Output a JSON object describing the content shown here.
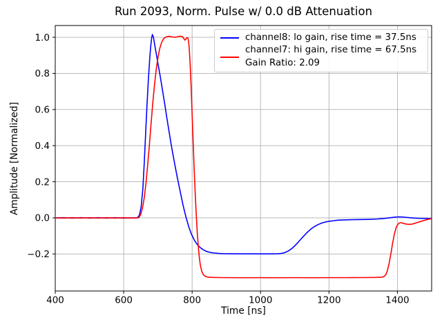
{
  "figure": {
    "background_color": "#ffffff",
    "text_color": "#000000"
  },
  "chart_data": {
    "type": "line",
    "title": "Run 2093, Norm. Pulse w/ 0.0 dB Attenuation",
    "xlabel": "Time [ns]",
    "ylabel": "Amplitude [Normalized]",
    "xlim": [
      400,
      1500
    ],
    "ylim": [
      -0.405,
      1.065
    ],
    "xticks": [
      400,
      600,
      800,
      1000,
      1200,
      1400
    ],
    "yticks": [
      -0.2,
      0.0,
      0.2,
      0.4,
      0.6,
      0.8,
      1.0
    ],
    "grid": true,
    "grid_color": "#b0b0b0",
    "axis_color": "#000000",
    "legend_position": "upper right",
    "series": [
      {
        "id": "channel8",
        "label": "channel8: lo gain, rise time = 37.5ns",
        "color": "#0000ff",
        "points": [
          [
            400,
            0.0
          ],
          [
            425,
            0.001
          ],
          [
            450,
            -0.001
          ],
          [
            475,
            0.001
          ],
          [
            500,
            -0.001
          ],
          [
            525,
            0.001
          ],
          [
            550,
            -0.001
          ],
          [
            575,
            0.001
          ],
          [
            600,
            -0.001
          ],
          [
            620,
            0.0
          ],
          [
            635,
            0.0
          ],
          [
            641,
            0.002
          ],
          [
            646,
            0.015
          ],
          [
            651,
            0.06
          ],
          [
            656,
            0.16
          ],
          [
            660,
            0.3
          ],
          [
            664,
            0.46
          ],
          [
            668,
            0.62
          ],
          [
            672,
            0.76
          ],
          [
            676,
            0.88
          ],
          [
            679,
            0.95
          ],
          [
            682,
            1.0
          ],
          [
            684,
            1.015
          ],
          [
            687,
            1.0
          ],
          [
            691,
            0.955
          ],
          [
            696,
            0.9
          ],
          [
            702,
            0.835
          ],
          [
            708,
            0.77
          ],
          [
            714,
            0.7
          ],
          [
            720,
            0.63
          ],
          [
            726,
            0.555
          ],
          [
            732,
            0.485
          ],
          [
            738,
            0.415
          ],
          [
            744,
            0.35
          ],
          [
            750,
            0.29
          ],
          [
            756,
            0.23
          ],
          [
            762,
            0.175
          ],
          [
            768,
            0.12
          ],
          [
            773,
            0.075
          ],
          [
            778,
            0.035
          ],
          [
            782,
            0.005
          ],
          [
            786,
            -0.022
          ],
          [
            790,
            -0.048
          ],
          [
            794,
            -0.07
          ],
          [
            798,
            -0.09
          ],
          [
            803,
            -0.11
          ],
          [
            808,
            -0.128
          ],
          [
            814,
            -0.145
          ],
          [
            820,
            -0.158
          ],
          [
            826,
            -0.168
          ],
          [
            833,
            -0.177
          ],
          [
            840,
            -0.184
          ],
          [
            848,
            -0.189
          ],
          [
            857,
            -0.193
          ],
          [
            867,
            -0.195
          ],
          [
            878,
            -0.197
          ],
          [
            890,
            -0.198
          ],
          [
            905,
            -0.1985
          ],
          [
            925,
            -0.199
          ],
          [
            950,
            -0.199
          ],
          [
            980,
            -0.199
          ],
          [
            1010,
            -0.1995
          ],
          [
            1035,
            -0.199
          ],
          [
            1052,
            -0.1985
          ],
          [
            1060,
            -0.197
          ],
          [
            1068,
            -0.194
          ],
          [
            1076,
            -0.188
          ],
          [
            1084,
            -0.18
          ],
          [
            1092,
            -0.169
          ],
          [
            1100,
            -0.155
          ],
          [
            1108,
            -0.139
          ],
          [
            1116,
            -0.122
          ],
          [
            1124,
            -0.105
          ],
          [
            1132,
            -0.089
          ],
          [
            1140,
            -0.074
          ],
          [
            1148,
            -0.061
          ],
          [
            1156,
            -0.05
          ],
          [
            1164,
            -0.041
          ],
          [
            1172,
            -0.034
          ],
          [
            1180,
            -0.028
          ],
          [
            1190,
            -0.023
          ],
          [
            1200,
            -0.019
          ],
          [
            1212,
            -0.016
          ],
          [
            1226,
            -0.013
          ],
          [
            1242,
            -0.0115
          ],
          [
            1260,
            -0.0105
          ],
          [
            1280,
            -0.0095
          ],
          [
            1300,
            -0.009
          ],
          [
            1320,
            -0.008
          ],
          [
            1340,
            -0.0065
          ],
          [
            1358,
            -0.004
          ],
          [
            1372,
            -0.001
          ],
          [
            1384,
            0.002
          ],
          [
            1394,
            0.0045
          ],
          [
            1404,
            0.0055
          ],
          [
            1414,
            0.005
          ],
          [
            1424,
            0.003
          ],
          [
            1436,
            0.001
          ],
          [
            1448,
            -0.001
          ],
          [
            1462,
            -0.0025
          ],
          [
            1478,
            -0.003
          ],
          [
            1490,
            -0.0035
          ],
          [
            1500,
            -0.004
          ]
        ]
      },
      {
        "id": "channel7",
        "label": "channel7: hi gain, rise time = 67.5ns",
        "label_extra": "Gain Ratio: 2.09",
        "color": "#ff0000",
        "points": [
          [
            400,
            0.0
          ],
          [
            425,
            -0.001
          ],
          [
            450,
            0.001
          ],
          [
            475,
            -0.001
          ],
          [
            500,
            0.001
          ],
          [
            525,
            -0.001
          ],
          [
            550,
            0.001
          ],
          [
            575,
            -0.001
          ],
          [
            600,
            0.001
          ],
          [
            625,
            -0.001
          ],
          [
            640,
            0.0
          ],
          [
            645,
            0.003
          ],
          [
            650,
            0.02
          ],
          [
            655,
            0.055
          ],
          [
            660,
            0.11
          ],
          [
            665,
            0.19
          ],
          [
            670,
            0.29
          ],
          [
            675,
            0.4
          ],
          [
            680,
            0.52
          ],
          [
            685,
            0.635
          ],
          [
            690,
            0.735
          ],
          [
            695,
            0.82
          ],
          [
            700,
            0.885
          ],
          [
            705,
            0.935
          ],
          [
            710,
            0.967
          ],
          [
            715,
            0.987
          ],
          [
            720,
            0.998
          ],
          [
            726,
            1.003
          ],
          [
            734,
            1.005
          ],
          [
            742,
            1.002
          ],
          [
            750,
            1.0
          ],
          [
            758,
            1.003
          ],
          [
            766,
            1.006
          ],
          [
            772,
            1.003
          ],
          [
            776,
            0.992
          ],
          [
            779,
            0.984
          ],
          [
            782,
            0.99
          ],
          [
            785,
            0.998
          ],
          [
            788,
            0.995
          ],
          [
            791,
            0.955
          ],
          [
            794,
            0.86
          ],
          [
            797,
            0.73
          ],
          [
            800,
            0.575
          ],
          [
            803,
            0.42
          ],
          [
            806,
            0.27
          ],
          [
            809,
            0.135
          ],
          [
            812,
            0.02
          ],
          [
            815,
            -0.08
          ],
          [
            818,
            -0.158
          ],
          [
            821,
            -0.218
          ],
          [
            824,
            -0.262
          ],
          [
            828,
            -0.295
          ],
          [
            832,
            -0.312
          ],
          [
            837,
            -0.322
          ],
          [
            843,
            -0.327
          ],
          [
            851,
            -0.329
          ],
          [
            862,
            -0.33
          ],
          [
            880,
            -0.3305
          ],
          [
            910,
            -0.331
          ],
          [
            950,
            -0.3315
          ],
          [
            1000,
            -0.331
          ],
          [
            1050,
            -0.3315
          ],
          [
            1100,
            -0.331
          ],
          [
            1150,
            -0.3315
          ],
          [
            1200,
            -0.331
          ],
          [
            1250,
            -0.331
          ],
          [
            1300,
            -0.3305
          ],
          [
            1335,
            -0.33
          ],
          [
            1352,
            -0.329
          ],
          [
            1360,
            -0.326
          ],
          [
            1366,
            -0.315
          ],
          [
            1371,
            -0.29
          ],
          [
            1376,
            -0.25
          ],
          [
            1381,
            -0.197
          ],
          [
            1386,
            -0.14
          ],
          [
            1391,
            -0.09
          ],
          [
            1396,
            -0.055
          ],
          [
            1401,
            -0.036
          ],
          [
            1406,
            -0.028
          ],
          [
            1411,
            -0.027
          ],
          [
            1417,
            -0.03
          ],
          [
            1424,
            -0.034
          ],
          [
            1432,
            -0.036
          ],
          [
            1440,
            -0.0355
          ],
          [
            1448,
            -0.032
          ],
          [
            1456,
            -0.027
          ],
          [
            1464,
            -0.022
          ],
          [
            1474,
            -0.016
          ],
          [
            1484,
            -0.011
          ],
          [
            1493,
            -0.007
          ],
          [
            1500,
            -0.005
          ]
        ]
      }
    ]
  }
}
